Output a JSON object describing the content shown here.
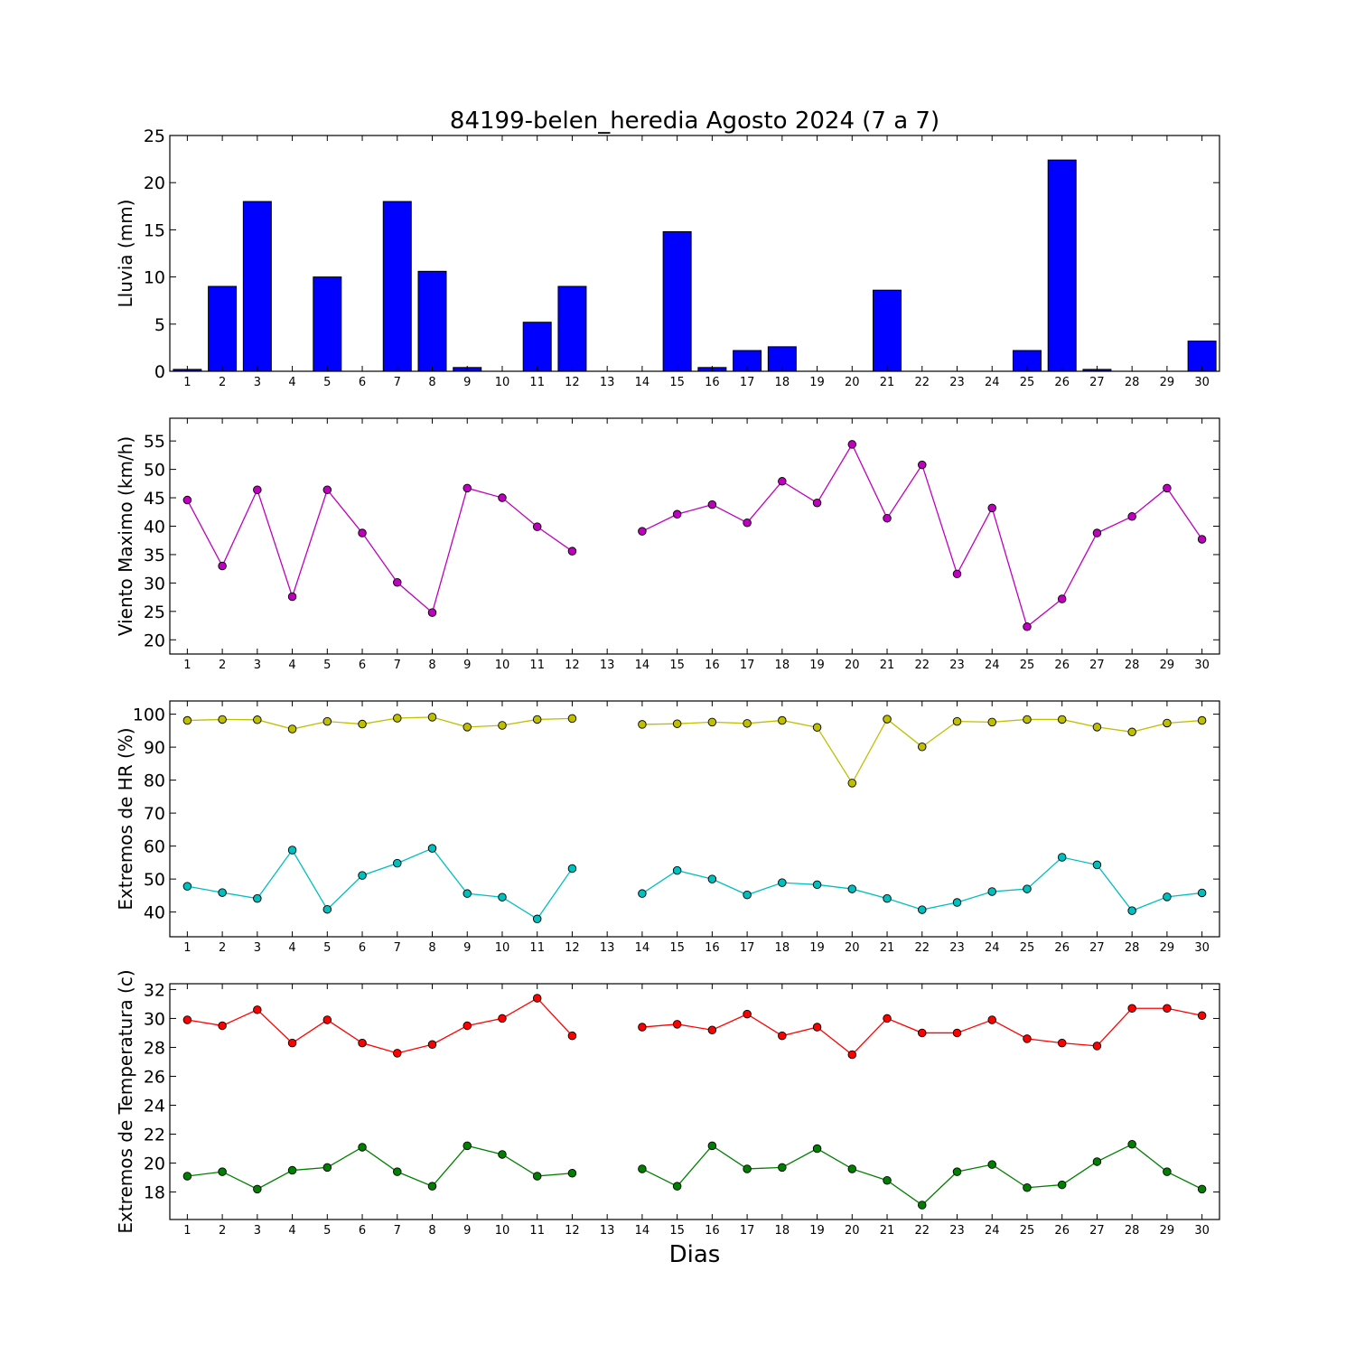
{
  "figure": {
    "title": "84199-belen_heredia Agosto 2024  (7 a 7)",
    "xlabel": "Dias"
  },
  "chart_data": [
    {
      "type": "bar",
      "id": "rain",
      "ylabel": "Lluvia (mm)",
      "ylim": [
        0,
        25
      ],
      "yticks": [
        0,
        5,
        10,
        15,
        20,
        25
      ],
      "categories": [
        1,
        2,
        3,
        4,
        5,
        6,
        7,
        8,
        9,
        10,
        11,
        12,
        13,
        14,
        15,
        16,
        17,
        18,
        19,
        20,
        21,
        22,
        23,
        24,
        25,
        26,
        27,
        28,
        29,
        30
      ],
      "color": "#0000ff",
      "values": [
        0.2,
        9.0,
        18.0,
        0,
        10.0,
        0,
        18.0,
        10.6,
        0.4,
        0,
        5.2,
        9.0,
        0,
        0,
        14.8,
        0.4,
        2.2,
        2.6,
        0,
        0,
        8.6,
        0,
        0,
        0,
        2.2,
        22.4,
        0.2,
        0,
        0,
        3.2
      ]
    },
    {
      "type": "line",
      "id": "wind",
      "ylabel": "Viento Maximo (km/h)",
      "ylim": [
        17.5,
        59
      ],
      "yticks": [
        20,
        25,
        30,
        35,
        40,
        45,
        50,
        55
      ],
      "x": [
        1,
        2,
        3,
        4,
        5,
        6,
        7,
        8,
        9,
        10,
        11,
        12,
        13,
        14,
        15,
        16,
        17,
        18,
        19,
        20,
        21,
        22,
        23,
        24,
        25,
        26,
        27,
        28,
        29,
        30
      ],
      "series": [
        {
          "color": "#bf00bf",
          "values": [
            44.6,
            33.0,
            46.4,
            27.6,
            46.4,
            38.8,
            30.1,
            24.8,
            46.7,
            45.0,
            39.9,
            35.6,
            null,
            39.1,
            42.1,
            43.8,
            40.6,
            47.9,
            44.1,
            54.4,
            41.4,
            50.8,
            31.6,
            43.2,
            22.3,
            27.2,
            38.8,
            41.7,
            46.7,
            37.7
          ]
        }
      ]
    },
    {
      "type": "line",
      "id": "humidity",
      "ylabel": "Extremos de HR (%)",
      "ylim": [
        32.5,
        104
      ],
      "yticks": [
        40,
        50,
        60,
        70,
        80,
        90,
        100
      ],
      "x": [
        1,
        2,
        3,
        4,
        5,
        6,
        7,
        8,
        9,
        10,
        11,
        12,
        13,
        14,
        15,
        16,
        17,
        18,
        19,
        20,
        21,
        22,
        23,
        24,
        25,
        26,
        27,
        28,
        29,
        30
      ],
      "series": [
        {
          "color": "#bfbf00",
          "values": [
            98.1,
            98.4,
            98.3,
            95.5,
            97.8,
            97.0,
            98.8,
            99.1,
            96.1,
            96.6,
            98.4,
            98.7,
            null,
            96.9,
            97.1,
            97.6,
            97.2,
            98.1,
            96.0,
            79.1,
            98.5,
            90.1,
            97.8,
            97.6,
            98.4,
            98.4,
            96.1,
            94.6,
            97.3,
            98.1
          ]
        },
        {
          "color": "#00bfbf",
          "values": [
            47.8,
            45.9,
            44.1,
            58.8,
            40.8,
            51.1,
            54.8,
            59.3,
            45.6,
            44.5,
            37.9,
            53.2,
            null,
            45.6,
            52.6,
            50.0,
            45.2,
            48.9,
            48.3,
            47.0,
            44.1,
            40.7,
            42.9,
            46.2,
            47.0,
            56.6,
            54.3,
            40.4,
            44.6,
            45.8
          ]
        }
      ]
    },
    {
      "type": "line",
      "id": "temperature",
      "ylabel": "Extremos de Temperatura (c)",
      "ylim": [
        16.1,
        32.4
      ],
      "yticks": [
        18,
        20,
        22,
        24,
        26,
        28,
        30,
        32
      ],
      "x": [
        1,
        2,
        3,
        4,
        5,
        6,
        7,
        8,
        9,
        10,
        11,
        12,
        13,
        14,
        15,
        16,
        17,
        18,
        19,
        20,
        21,
        22,
        23,
        24,
        25,
        26,
        27,
        28,
        29,
        30
      ],
      "series": [
        {
          "color": "#ff0000",
          "values": [
            29.9,
            29.5,
            30.6,
            28.3,
            29.9,
            28.3,
            27.6,
            28.2,
            29.5,
            30.0,
            31.4,
            28.8,
            null,
            29.4,
            29.6,
            29.2,
            30.3,
            28.8,
            29.4,
            27.5,
            30.0,
            29.0,
            29.0,
            29.9,
            28.6,
            28.3,
            28.1,
            30.7,
            30.7,
            30.2
          ]
        },
        {
          "color": "#008000",
          "values": [
            19.1,
            19.4,
            18.2,
            19.5,
            19.7,
            21.1,
            19.4,
            18.4,
            21.2,
            20.6,
            19.1,
            19.3,
            null,
            19.6,
            18.4,
            21.2,
            19.6,
            19.7,
            21.0,
            19.6,
            18.8,
            17.1,
            19.4,
            19.9,
            18.3,
            18.5,
            20.1,
            21.3,
            19.4,
            18.2
          ]
        }
      ]
    }
  ]
}
